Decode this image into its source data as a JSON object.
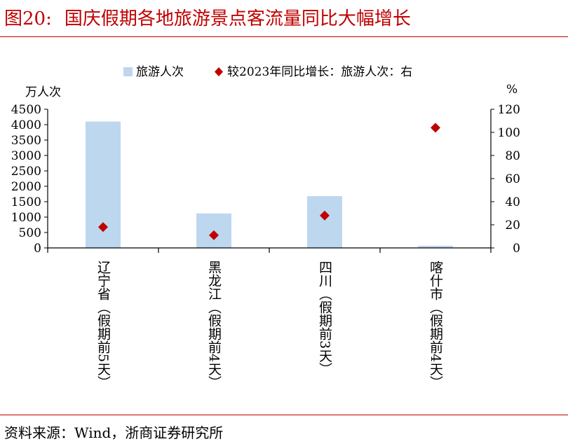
{
  "figure": {
    "number": "图20:",
    "title": "国庆假期各地旅游景点客流量同比大幅增长",
    "source": "资料来源：Wind，浙商证券研究所"
  },
  "chart_data": {
    "type": "bar",
    "categories": [
      "辽宁省（假期前5天）",
      "黑龙江（假期前4天）",
      "四川（假期前3天）",
      "喀什市（假期前4天）"
    ],
    "series": [
      {
        "name": "旅游人次",
        "type": "bar",
        "axis": "left",
        "color": "#bdd7ee",
        "values": [
          4100,
          1120,
          1680,
          70
        ]
      },
      {
        "name": "较2023年同比增长：旅游人次：右",
        "type": "scatter",
        "axis": "right",
        "color": "#c00000",
        "values": [
          18,
          11,
          28,
          104
        ]
      }
    ],
    "y_left": {
      "unit": "万人次",
      "ylim": [
        0,
        4500
      ],
      "ticks": [
        "0",
        "500",
        "1000",
        "1500",
        "2000",
        "2500",
        "3000",
        "3500",
        "4000",
        "4500"
      ]
    },
    "y_right": {
      "unit": "%",
      "ylim": [
        0,
        120
      ],
      "ticks": [
        "0",
        "20",
        "40",
        "60",
        "80",
        "100",
        "120"
      ]
    },
    "legend_position": "top",
    "grid": false
  }
}
